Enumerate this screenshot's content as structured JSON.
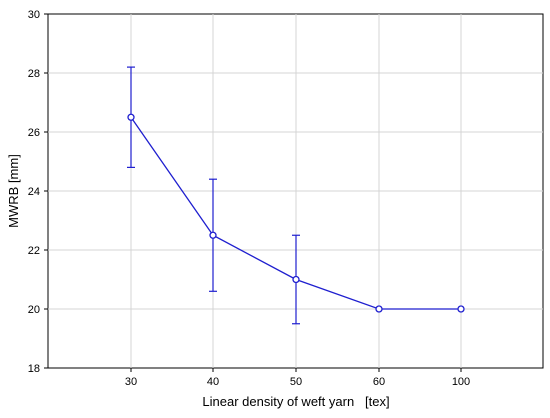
{
  "chart_data": {
    "type": "line",
    "xlabel": "Linear density of weft yarn   [tex]",
    "ylabel": "MWRB [mm]",
    "categories": [
      "30",
      "40",
      "50",
      "60",
      "100"
    ],
    "series": [
      {
        "values": [
          26.5,
          22.5,
          21.0,
          20.0,
          20.0
        ],
        "error_low": [
          24.8,
          20.6,
          19.5,
          20.0,
          20.0
        ],
        "error_high": [
          28.2,
          24.4,
          22.5,
          20.0,
          20.0
        ],
        "color": "#1f1fcf",
        "marker": "circle"
      }
    ],
    "ylim": [
      18,
      30
    ],
    "yticks": [
      18,
      20,
      22,
      24,
      26,
      28,
      30
    ],
    "grid": true
  }
}
